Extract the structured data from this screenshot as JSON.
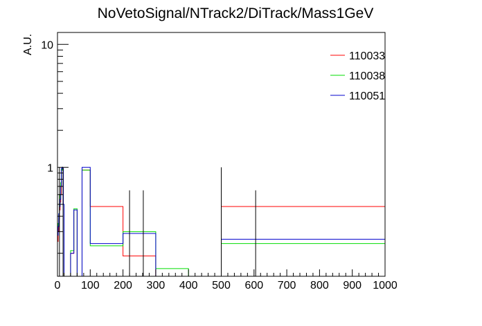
{
  "chart_data": {
    "type": "line",
    "title": "NoVetoSignal/NTrack2/DiTrack/Mass1GeV",
    "xlabel": "",
    "ylabel": "A.U.",
    "xlim": [
      0,
      1000
    ],
    "ylim": [
      0.13,
      12.5
    ],
    "yscale": "log",
    "x_ticks": [
      0,
      100,
      200,
      300,
      400,
      500,
      600,
      700,
      800,
      900,
      1000
    ],
    "y_ticks": [
      1,
      10
    ],
    "legend_position": "top-right",
    "bin_edges": [
      0,
      2,
      4,
      6,
      8,
      10,
      12,
      14,
      16,
      18,
      20,
      40,
      50,
      60,
      75,
      100,
      200,
      300,
      400,
      500,
      1000
    ],
    "series": [
      {
        "name": "110033",
        "color": "#ff0000",
        "values": [
          0.25,
          0.3,
          0.38,
          0.45,
          0.52,
          0.6,
          0.95,
          1.0,
          0.95,
          0.5,
          0.13,
          0.2,
          0.45,
          0.13,
          0.95,
          0.48,
          0.19,
          0.13,
          0.13,
          0.48
        ]
      },
      {
        "name": "110038",
        "color": "#00dd00",
        "values": [
          0.3,
          0.35,
          0.42,
          0.5,
          0.6,
          0.75,
          0.95,
          1.0,
          0.95,
          0.5,
          0.13,
          0.21,
          0.46,
          0.13,
          0.95,
          0.23,
          0.3,
          0.15,
          0.13,
          0.24
        ]
      },
      {
        "name": "110051",
        "color": "#0000cc",
        "values": [
          0.28,
          0.33,
          0.42,
          0.48,
          0.55,
          0.7,
          0.98,
          1.0,
          0.98,
          0.5,
          0.13,
          0.2,
          0.45,
          0.13,
          1.0,
          0.24,
          0.29,
          0.13,
          0.13,
          0.26
        ]
      }
    ],
    "error_bars": [
      {
        "x": 6,
        "low": 0.13,
        "high": 1.0
      },
      {
        "x": 17,
        "low": 0.13,
        "high": 1.0
      },
      {
        "x": 220,
        "low": 0.13,
        "high": 0.65
      },
      {
        "x": 262,
        "low": 0.13,
        "high": 0.65
      },
      {
        "x": 500,
        "low": 0.13,
        "high": 1.0
      },
      {
        "x": 605,
        "low": 0.13,
        "high": 0.65
      }
    ]
  }
}
